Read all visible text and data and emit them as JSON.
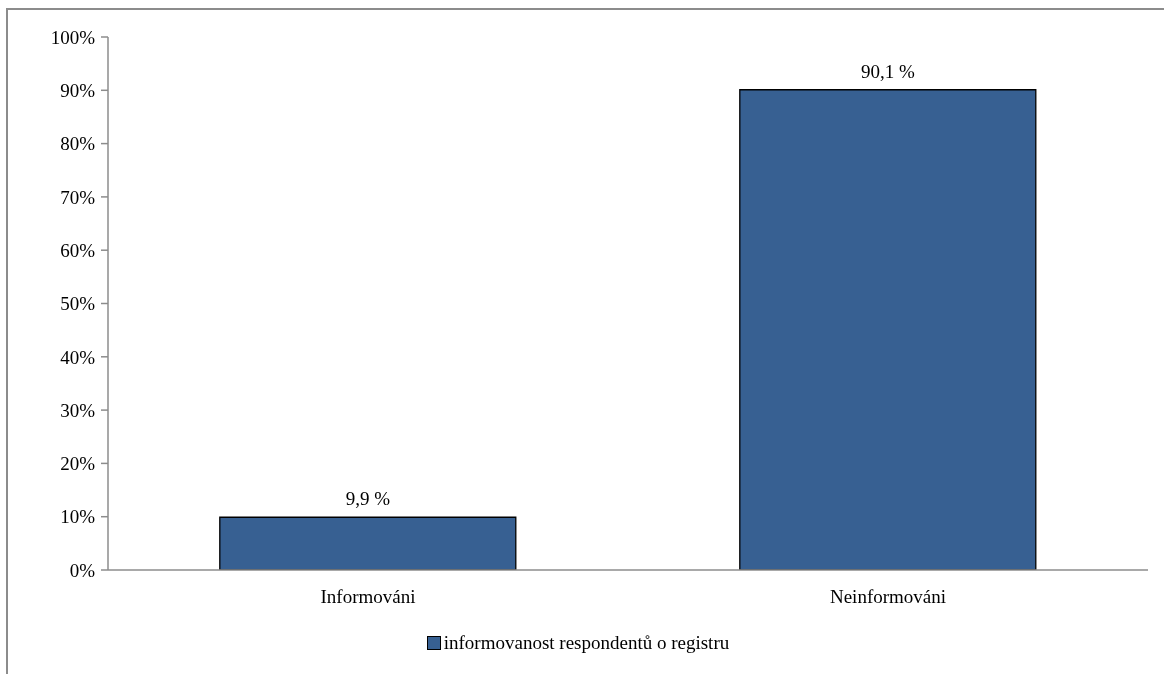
{
  "chart_data": {
    "type": "bar",
    "categories": [
      "Informováni",
      "Neinformováni"
    ],
    "series": [
      {
        "name": "informovanost respondentů o registru",
        "color": "#376092",
        "values": [
          9.9,
          90.1
        ],
        "value_labels": [
          "9,9 %",
          "90,1 %"
        ]
      }
    ],
    "ylim": [
      0,
      100
    ],
    "yticks": [
      {
        "value": 0,
        "label": "0%"
      },
      {
        "value": 10,
        "label": "10%"
      },
      {
        "value": 20,
        "label": "20%"
      },
      {
        "value": 30,
        "label": "30%"
      },
      {
        "value": 40,
        "label": "40%"
      },
      {
        "value": 50,
        "label": "50%"
      },
      {
        "value": 60,
        "label": "60%"
      },
      {
        "value": 70,
        "label": "70%"
      },
      {
        "value": 80,
        "label": "80%"
      },
      {
        "value": 90,
        "label": "90%"
      },
      {
        "value": 100,
        "label": "100%"
      }
    ],
    "legend": "bottom",
    "grid": false
  }
}
